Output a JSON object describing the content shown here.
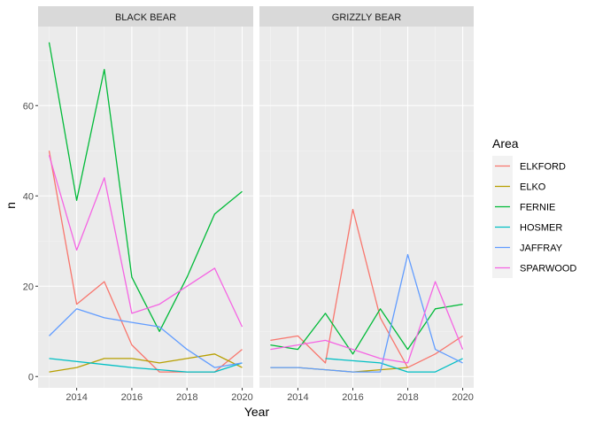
{
  "chart_data": {
    "type": "line",
    "xlabel": "Year",
    "ylabel": "n",
    "xlim": [
      2012.6,
      2020.4
    ],
    "ylim": [
      -2.5,
      77.5
    ],
    "x_ticks": [
      2014,
      2016,
      2018,
      2020
    ],
    "x_tick_labels": [
      "2014",
      "2016",
      "2018",
      "2020"
    ],
    "y_ticks": [
      0,
      20,
      40,
      60
    ],
    "y_tick_labels": [
      "0",
      "20",
      "40",
      "60"
    ],
    "grid": true,
    "legend": {
      "title": "Area",
      "position": "right"
    },
    "panels": [
      {
        "title": "BLACK BEAR",
        "series": [
          {
            "name": "ELKFORD",
            "color": "#F8766D",
            "x": [
              2013,
              2014,
              2015,
              2016,
              2017,
              2018,
              2019,
              2020
            ],
            "y": [
              50,
              16,
              21,
              7,
              1,
              1,
              1,
              6
            ]
          },
          {
            "name": "ELKO",
            "color": "#B79F00",
            "x": [
              2013,
              2014,
              2015,
              2016,
              2017,
              2018,
              2019,
              2020
            ],
            "y": [
              1,
              2,
              4,
              4,
              3,
              4,
              5,
              2
            ]
          },
          {
            "name": "FERNIE",
            "color": "#00BA38",
            "x": [
              2013,
              2014,
              2015,
              2016,
              2017,
              2018,
              2019,
              2020
            ],
            "y": [
              74,
              39,
              68,
              22,
              10,
              22,
              36,
              41
            ]
          },
          {
            "name": "HOSMER",
            "color": "#00BFC4",
            "x": [
              2013,
              2016,
              2018,
              2019,
              2020
            ],
            "y": [
              4,
              2,
              1,
              1,
              3
            ]
          },
          {
            "name": "JAFFRAY",
            "color": "#619CFF",
            "x": [
              2013,
              2014,
              2015,
              2016,
              2017,
              2018,
              2019,
              2020
            ],
            "y": [
              9,
              15,
              13,
              12,
              11,
              6,
              2,
              3
            ]
          },
          {
            "name": "SPARWOOD",
            "color": "#F564E3",
            "x": [
              2013,
              2014,
              2015,
              2016,
              2017,
              2018,
              2019,
              2020
            ],
            "y": [
              49,
              28,
              44,
              14,
              16,
              20,
              24,
              11
            ]
          }
        ]
      },
      {
        "title": "GRIZZLY BEAR",
        "series": [
          {
            "name": "ELKFORD",
            "color": "#F8766D",
            "x": [
              2013,
              2014,
              2015,
              2016,
              2017,
              2018,
              2019,
              2020
            ],
            "y": [
              8,
              9,
              3,
              37,
              13,
              2,
              5,
              9
            ]
          },
          {
            "name": "ELKO",
            "color": "#B79F00",
            "x": [
              2013,
              2014,
              2016,
              2018
            ],
            "y": [
              2,
              2,
              1,
              2
            ]
          },
          {
            "name": "FERNIE",
            "color": "#00BA38",
            "x": [
              2013,
              2014,
              2015,
              2016,
              2017,
              2018,
              2019,
              2020
            ],
            "y": [
              7,
              6,
              14,
              5,
              15,
              6,
              15,
              16
            ]
          },
          {
            "name": "HOSMER",
            "color": "#00BFC4",
            "x": [
              2015,
              2017,
              2018,
              2019,
              2020
            ],
            "y": [
              4,
              3,
              1,
              1,
              4
            ]
          },
          {
            "name": "JAFFRAY",
            "color": "#619CFF",
            "x": [
              2013,
              2014,
              2016,
              2017,
              2018,
              2019,
              2020
            ],
            "y": [
              2,
              2,
              1,
              1,
              27,
              6,
              3
            ]
          },
          {
            "name": "SPARWOOD",
            "color": "#F564E3",
            "x": [
              2013,
              2014,
              2015,
              2016,
              2017,
              2018,
              2019,
              2020
            ],
            "y": [
              6,
              7,
              8,
              6,
              4,
              3,
              21,
              6
            ]
          }
        ]
      }
    ]
  }
}
